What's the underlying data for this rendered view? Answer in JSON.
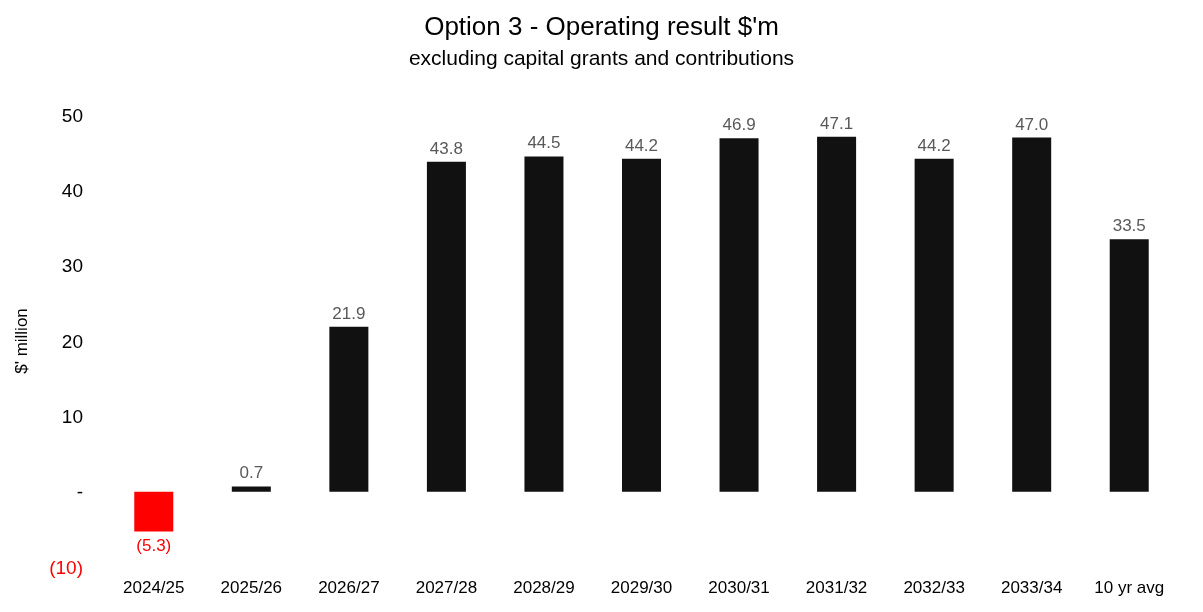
{
  "chart_data": {
    "type": "bar",
    "title": "Option 3 - Operating result $'m",
    "subtitle": "excluding capital grants and contributions",
    "ylabel": "$' million",
    "categories": [
      "2024/25",
      "2025/26",
      "2026/27",
      "2027/28",
      "2028/29",
      "2029/30",
      "2030/31",
      "2031/32",
      "2032/33",
      "2033/34",
      "10 yr avg"
    ],
    "values": [
      -5.3,
      0.7,
      21.9,
      43.8,
      44.5,
      44.2,
      46.9,
      47.1,
      44.2,
      47.0,
      33.5
    ],
    "colors": [
      "#ff0000",
      "#111111",
      "#111111",
      "#111111",
      "#111111",
      "#111111",
      "#111111",
      "#111111",
      "#111111",
      "#111111",
      "#111111"
    ],
    "value_labels": [
      "(5.3)",
      "0.7",
      "21.9",
      "43.8",
      "44.5",
      "44.2",
      "46.9",
      "47.1",
      "44.2",
      "47.0",
      "33.5"
    ],
    "ylim": [
      -10,
      50
    ],
    "yticks": [
      {
        "value": -10,
        "label": "(10)"
      },
      {
        "value": 0,
        "label": "-"
      },
      10,
      20,
      30,
      40,
      50
    ],
    "grid": false
  }
}
